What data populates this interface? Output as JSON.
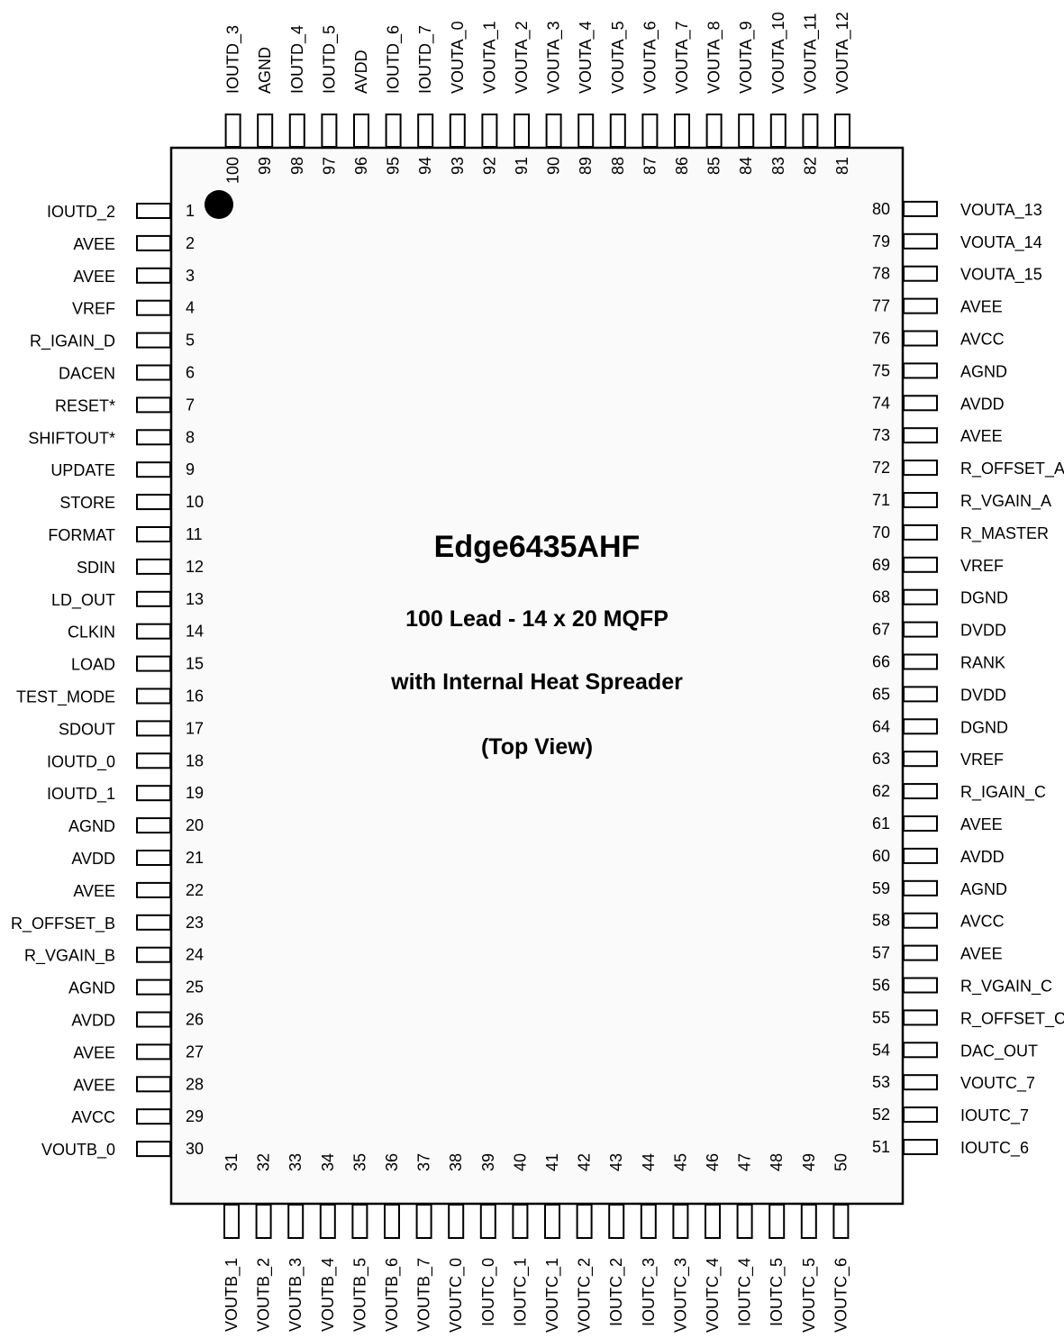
{
  "chip": {
    "part_number": "Edge6435AHF",
    "package": "100 Lead - 14 x 20 MQFP",
    "heat_spreader": "with Internal Heat Spreader",
    "view": "(Top View)"
  },
  "pins": {
    "left": [
      {
        "num": "1",
        "name": "IOUTD_2"
      },
      {
        "num": "2",
        "name": "AVEE"
      },
      {
        "num": "3",
        "name": "AVEE"
      },
      {
        "num": "4",
        "name": "VREF"
      },
      {
        "num": "5",
        "name": "R_IGAIN_D"
      },
      {
        "num": "6",
        "name": "DACEN"
      },
      {
        "num": "7",
        "name": "RESET*"
      },
      {
        "num": "8",
        "name": "SHIFTOUT*"
      },
      {
        "num": "9",
        "name": "UPDATE"
      },
      {
        "num": "10",
        "name": "STORE"
      },
      {
        "num": "11",
        "name": "FORMAT"
      },
      {
        "num": "12",
        "name": "SDIN"
      },
      {
        "num": "13",
        "name": "LD_OUT"
      },
      {
        "num": "14",
        "name": "CLKIN"
      },
      {
        "num": "15",
        "name": "LOAD"
      },
      {
        "num": "16",
        "name": "TEST_MODE"
      },
      {
        "num": "17",
        "name": "SDOUT"
      },
      {
        "num": "18",
        "name": "IOUTD_0"
      },
      {
        "num": "19",
        "name": "IOUTD_1"
      },
      {
        "num": "20",
        "name": "AGND"
      },
      {
        "num": "21",
        "name": "AVDD"
      },
      {
        "num": "22",
        "name": "AVEE"
      },
      {
        "num": "23",
        "name": "R_OFFSET_B"
      },
      {
        "num": "24",
        "name": "R_VGAIN_B"
      },
      {
        "num": "25",
        "name": "AGND"
      },
      {
        "num": "26",
        "name": "AVDD"
      },
      {
        "num": "27",
        "name": "AVEE"
      },
      {
        "num": "28",
        "name": "AVEE"
      },
      {
        "num": "29",
        "name": "AVCC"
      },
      {
        "num": "30",
        "name": "VOUTB_0"
      }
    ],
    "bottom": [
      {
        "num": "31",
        "name": "VOUTB_1"
      },
      {
        "num": "32",
        "name": "VOUTB_2"
      },
      {
        "num": "33",
        "name": "VOUTB_3"
      },
      {
        "num": "34",
        "name": "VOUTB_4"
      },
      {
        "num": "35",
        "name": "VOUTB_5"
      },
      {
        "num": "36",
        "name": "VOUTB_6"
      },
      {
        "num": "37",
        "name": "VOUTB_7"
      },
      {
        "num": "38",
        "name": "VOUTC_0"
      },
      {
        "num": "39",
        "name": "IOUTC_0"
      },
      {
        "num": "40",
        "name": "IOUTC_1"
      },
      {
        "num": "41",
        "name": "VOUTC_1"
      },
      {
        "num": "42",
        "name": "VOUTC_2"
      },
      {
        "num": "43",
        "name": "IOUTC_2"
      },
      {
        "num": "44",
        "name": "IOUTC_3"
      },
      {
        "num": "45",
        "name": "VOUTC_3"
      },
      {
        "num": "46",
        "name": "VOUTC_4"
      },
      {
        "num": "47",
        "name": "IOUTC_4"
      },
      {
        "num": "48",
        "name": "IOUTC_5"
      },
      {
        "num": "49",
        "name": "VOUTC_5"
      },
      {
        "num": "50",
        "name": "VOUTC_6"
      }
    ],
    "right": [
      {
        "num": "51",
        "name": "IOUTC_6"
      },
      {
        "num": "52",
        "name": "IOUTC_7"
      },
      {
        "num": "53",
        "name": "VOUTC_7"
      },
      {
        "num": "54",
        "name": "DAC_OUT"
      },
      {
        "num": "55",
        "name": "R_OFFSET_C"
      },
      {
        "num": "56",
        "name": "R_VGAIN_C"
      },
      {
        "num": "57",
        "name": "AVEE"
      },
      {
        "num": "58",
        "name": "AVCC"
      },
      {
        "num": "59",
        "name": "AGND"
      },
      {
        "num": "60",
        "name": "AVDD"
      },
      {
        "num": "61",
        "name": "AVEE"
      },
      {
        "num": "62",
        "name": "R_IGAIN_C"
      },
      {
        "num": "63",
        "name": "VREF"
      },
      {
        "num": "64",
        "name": "DGND"
      },
      {
        "num": "65",
        "name": "DVDD"
      },
      {
        "num": "66",
        "name": "RANK"
      },
      {
        "num": "67",
        "name": "DVDD"
      },
      {
        "num": "68",
        "name": "DGND"
      },
      {
        "num": "69",
        "name": "VREF"
      },
      {
        "num": "70",
        "name": "R_MASTER"
      },
      {
        "num": "71",
        "name": "R_VGAIN_A"
      },
      {
        "num": "72",
        "name": "R_OFFSET_A"
      },
      {
        "num": "73",
        "name": "AVEE"
      },
      {
        "num": "74",
        "name": "AVDD"
      },
      {
        "num": "75",
        "name": "AGND"
      },
      {
        "num": "76",
        "name": "AVCC"
      },
      {
        "num": "77",
        "name": "AVEE"
      },
      {
        "num": "78",
        "name": "VOUTA_15"
      },
      {
        "num": "79",
        "name": "VOUTA_14"
      },
      {
        "num": "80",
        "name": "VOUTA_13"
      }
    ],
    "top": [
      {
        "num": "81",
        "name": "VOUTA_12"
      },
      {
        "num": "82",
        "name": "VOUTA_11"
      },
      {
        "num": "83",
        "name": "VOUTA_10"
      },
      {
        "num": "84",
        "name": "VOUTA_9"
      },
      {
        "num": "85",
        "name": "VOUTA_8"
      },
      {
        "num": "86",
        "name": "VOUTA_7"
      },
      {
        "num": "87",
        "name": "VOUTA_6"
      },
      {
        "num": "88",
        "name": "VOUTA_5"
      },
      {
        "num": "89",
        "name": "VOUTA_4"
      },
      {
        "num": "90",
        "name": "VOUTA_3"
      },
      {
        "num": "91",
        "name": "VOUTA_2"
      },
      {
        "num": "92",
        "name": "VOUTA_1"
      },
      {
        "num": "93",
        "name": "VOUTA_0"
      },
      {
        "num": "94",
        "name": "IOUTD_7"
      },
      {
        "num": "95",
        "name": "IOUTD_6"
      },
      {
        "num": "96",
        "name": "AVDD"
      },
      {
        "num": "97",
        "name": "IOUTD_5"
      },
      {
        "num": "98",
        "name": "IOUTD_4"
      },
      {
        "num": "99",
        "name": "AGND"
      },
      {
        "num": "100",
        "name": "IOUTD_3"
      }
    ]
  }
}
